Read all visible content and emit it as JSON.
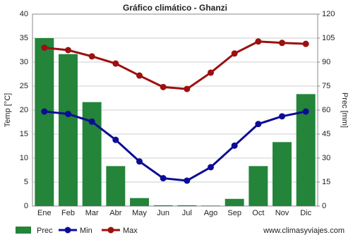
{
  "chart_data": {
    "type": "bar",
    "title": "Gráfico climático - Ghanzi",
    "categories": [
      "Ene",
      "Feb",
      "Mar",
      "Abr",
      "May",
      "Jun",
      "Jul",
      "Ago",
      "Sep",
      "Oct",
      "Nov",
      "Dic"
    ],
    "series": [
      {
        "name": "Prec",
        "type": "bar",
        "axis": "y2",
        "color": "#23843a",
        "values": [
          105,
          95,
          65,
          25,
          5,
          0.5,
          0.5,
          0.3,
          4.5,
          25,
          40,
          70
        ]
      },
      {
        "name": "Min",
        "type": "line",
        "color": "#0c0c96",
        "values": [
          19.7,
          19.2,
          17.6,
          13.8,
          9.3,
          5.8,
          5.3,
          8.1,
          12.6,
          17.1,
          18.7,
          19.7
        ]
      },
      {
        "name": "Max",
        "type": "line",
        "color": "#9c1010",
        "values": [
          33.0,
          32.5,
          31.2,
          29.7,
          27.2,
          24.8,
          24.4,
          27.8,
          31.8,
          34.3,
          34.0,
          33.8
        ]
      }
    ],
    "ylabel": "Temp [°C]",
    "y2label": "Prec [mm]",
    "ylim": [
      0,
      40
    ],
    "yticks": [
      0,
      5,
      10,
      15,
      20,
      25,
      30,
      35,
      40
    ],
    "y2lim": [
      0,
      120
    ],
    "y2ticks": [
      0,
      15,
      30,
      45,
      60,
      75,
      90,
      105,
      120
    ],
    "grid": true,
    "legend": "bottom-left",
    "source": "www.climasyviajes.com"
  }
}
